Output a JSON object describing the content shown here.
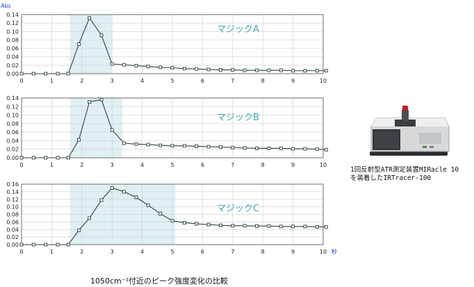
{
  "chart_data": [
    {
      "type": "line",
      "ylabel": "Abs",
      "series_label": "マジックA",
      "xlim": [
        0,
        10
      ],
      "ylim": [
        0,
        0.14
      ],
      "x_ticks": [
        "0",
        "1",
        "2",
        "3",
        "4",
        "5",
        "6",
        "7",
        "8",
        "9",
        "10"
      ],
      "y_ticks": [
        "0.00",
        "0.02",
        "0.04",
        "0.06",
        "0.08",
        "0.10",
        "0.12",
        "0.14"
      ],
      "highlight": [
        1.6,
        3.0
      ],
      "grid": true,
      "x": [
        0,
        0.4,
        0.8,
        1.2,
        1.55,
        1.9,
        2.25,
        2.65,
        3.0,
        3.4,
        3.8,
        4.2,
        4.6,
        5.0,
        5.4,
        5.8,
        6.2,
        6.6,
        7.0,
        7.4,
        7.8,
        8.2,
        8.6,
        9.0,
        9.4,
        9.8,
        10.1
      ],
      "y": [
        0.0,
        0.0,
        0.0,
        0.0,
        0.0,
        0.07,
        0.132,
        0.091,
        0.023,
        0.021,
        0.019,
        0.017,
        0.015,
        0.014,
        0.012,
        0.011,
        0.01,
        0.009,
        0.009,
        0.008,
        0.008,
        0.008,
        0.008,
        0.007,
        0.007,
        0.007,
        0.007
      ]
    },
    {
      "type": "line",
      "series_label": "マジックB",
      "xlim": [
        0,
        10
      ],
      "ylim": [
        0,
        0.14
      ],
      "x_ticks": [
        "0",
        "1",
        "2",
        "3",
        "4",
        "5",
        "6",
        "7",
        "8",
        "9",
        "10"
      ],
      "y_ticks": [
        "0.00",
        "0.02",
        "0.04",
        "0.06",
        "0.08",
        "0.10",
        "0.12",
        "0.14"
      ],
      "highlight": [
        1.6,
        3.35
      ],
      "grid": true,
      "x": [
        0,
        0.4,
        0.8,
        1.2,
        1.55,
        1.9,
        2.25,
        2.65,
        3.0,
        3.4,
        3.8,
        4.2,
        4.6,
        5.0,
        5.4,
        5.8,
        6.2,
        6.6,
        7.0,
        7.4,
        7.8,
        8.2,
        8.6,
        9.0,
        9.4,
        9.8,
        10.1
      ],
      "y": [
        0.0,
        0.0,
        0.0,
        0.0,
        0.0,
        0.042,
        0.131,
        0.136,
        0.065,
        0.034,
        0.032,
        0.031,
        0.029,
        0.028,
        0.028,
        0.027,
        0.026,
        0.025,
        0.024,
        0.023,
        0.022,
        0.022,
        0.022,
        0.021,
        0.021,
        0.02,
        0.019
      ]
    },
    {
      "type": "line",
      "series_label": "マジックC",
      "xlabel": "秒",
      "xlim": [
        0,
        10
      ],
      "ylim": [
        0,
        0.16
      ],
      "x_ticks": [
        "0",
        "1",
        "2",
        "3",
        "4",
        "5",
        "6",
        "7",
        "8",
        "9",
        "10"
      ],
      "y_ticks": [
        "0.00",
        "0.02",
        "0.04",
        "0.06",
        "0.08",
        "0.10",
        "0.12",
        "0.14",
        "0.16"
      ],
      "highlight": [
        1.6,
        5.1
      ],
      "grid": true,
      "x": [
        0,
        0.4,
        0.8,
        1.2,
        1.55,
        1.9,
        2.25,
        2.65,
        3.0,
        3.4,
        3.8,
        4.2,
        4.6,
        5.0,
        5.4,
        5.8,
        6.2,
        6.6,
        7.0,
        7.4,
        7.8,
        8.2,
        8.6,
        9.0,
        9.4,
        9.8,
        10.1
      ],
      "y": [
        0.0,
        0.0,
        0.0,
        0.0,
        0.0,
        0.038,
        0.07,
        0.118,
        0.15,
        0.14,
        0.125,
        0.104,
        0.082,
        0.063,
        0.058,
        0.055,
        0.053,
        0.051,
        0.05,
        0.05,
        0.049,
        0.049,
        0.048,
        0.048,
        0.048,
        0.047,
        0.047
      ]
    }
  ],
  "caption": "1050cm⁻¹付近のピーク強度変化の比較",
  "instrument_caption": {
    "line1": "1回反射型ATR測定装置MIRacle 10",
    "line2": "を装着したIRTracer-100"
  },
  "colors": {
    "line": "#2f3f3f",
    "highlight": "#dff0f3",
    "grid": "#d4d4d4",
    "axis_unit": "#1a3fc0",
    "series_label": "#3aa7b5"
  }
}
